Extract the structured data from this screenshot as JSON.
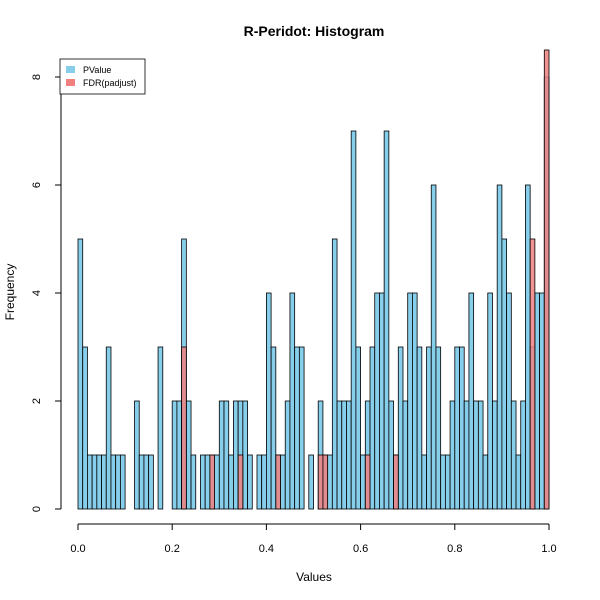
{
  "chart_data": {
    "type": "bar",
    "title": "R-Peridot: Histogram",
    "xlabel": "Values",
    "ylabel": "Frequency",
    "xlim": [
      0,
      1
    ],
    "ylim": [
      0,
      8
    ],
    "x_ticks": [
      "0.0",
      "0.2",
      "0.4",
      "0.6",
      "0.8",
      "1.0"
    ],
    "y_ticks": [
      "0",
      "2",
      "4",
      "6",
      "8"
    ],
    "bin_width": 0.01,
    "legend_position": "top-left",
    "series": [
      {
        "name": "PValue",
        "color": "#87CEEB",
        "bin_starts": [
          0.0,
          0.01,
          0.02,
          0.03,
          0.04,
          0.05,
          0.06,
          0.07,
          0.08,
          0.09,
          0.12,
          0.13,
          0.14,
          0.15,
          0.17,
          0.2,
          0.21,
          0.22,
          0.23,
          0.24,
          0.26,
          0.27,
          0.28,
          0.29,
          0.3,
          0.31,
          0.32,
          0.33,
          0.34,
          0.35,
          0.36,
          0.38,
          0.39,
          0.4,
          0.41,
          0.42,
          0.43,
          0.44,
          0.45,
          0.46,
          0.47,
          0.49,
          0.51,
          0.52,
          0.53,
          0.54,
          0.55,
          0.56,
          0.57,
          0.58,
          0.59,
          0.6,
          0.61,
          0.62,
          0.63,
          0.64,
          0.65,
          0.66,
          0.67,
          0.68,
          0.69,
          0.7,
          0.71,
          0.72,
          0.73,
          0.74,
          0.75,
          0.76,
          0.77,
          0.78,
          0.79,
          0.8,
          0.81,
          0.82,
          0.83,
          0.84,
          0.85,
          0.86,
          0.87,
          0.88,
          0.89,
          0.9,
          0.91,
          0.92,
          0.93,
          0.94,
          0.95,
          0.96,
          0.97,
          0.98,
          0.99
        ],
        "values": [
          5,
          3,
          1,
          1,
          1,
          1,
          3,
          1,
          1,
          1,
          2,
          1,
          1,
          1,
          3,
          2,
          2,
          5,
          2,
          1,
          1,
          1,
          1,
          1,
          2,
          2,
          1,
          2,
          2,
          2,
          1,
          1,
          1,
          4,
          3,
          1,
          1,
          2,
          4,
          3,
          3,
          1,
          2,
          1,
          1,
          5,
          2,
          2,
          2,
          7,
          3,
          1,
          2,
          3,
          4,
          4,
          7,
          2,
          1,
          3,
          2,
          4,
          4,
          3,
          1,
          3,
          6,
          3,
          1,
          1,
          2,
          3,
          3,
          2,
          4,
          2,
          2,
          1,
          4,
          2,
          6,
          5,
          4,
          2,
          1,
          2,
          6,
          3,
          4,
          4,
          8
        ]
      },
      {
        "name": "FDR(padjust)",
        "color": "#F08080",
        "bin_starts": [
          0.22,
          0.28,
          0.34,
          0.42,
          0.51,
          0.52,
          0.61,
          0.67,
          0.96,
          0.99
        ],
        "values": [
          3,
          1,
          1,
          1,
          1,
          1,
          1,
          1,
          5,
          8.5
        ]
      }
    ]
  }
}
